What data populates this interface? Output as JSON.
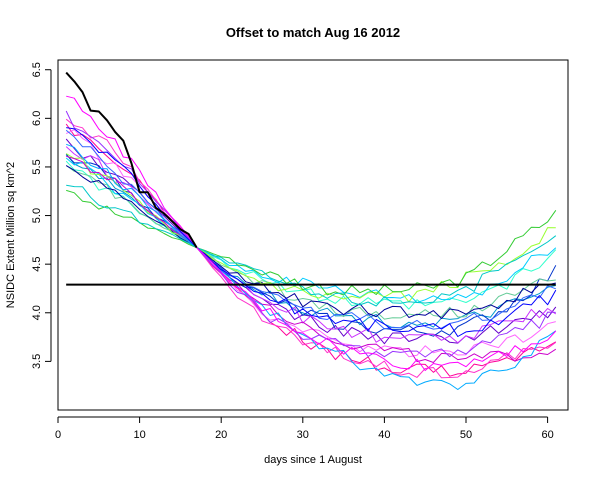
{
  "chart_data": {
    "type": "line",
    "title": "Offset to match Aug 16 2012",
    "xlabel": "days since 1 August",
    "ylabel": "NSIDC Extent Million sq km^2",
    "xlim": [
      0,
      62.5
    ],
    "ylim": [
      3.0,
      6.6
    ],
    "xticks": [
      0,
      10,
      20,
      30,
      40,
      50,
      60
    ],
    "yticks": [
      3.5,
      4.0,
      4.5,
      5.0,
      5.5,
      6.0,
      6.5
    ],
    "grid": false,
    "legend": "none",
    "match_day": 17,
    "match_value": 4.67,
    "hline": {
      "value": 4.29,
      "x_from": 1,
      "x_to": 61,
      "color": "#000000"
    },
    "series": [
      {
        "color": "#000000",
        "width": 2,
        "x": [
          1,
          2,
          3,
          4,
          5,
          6,
          7,
          8,
          9,
          10,
          11,
          12,
          13,
          14,
          15,
          16,
          17
        ],
        "values": [
          6.47,
          6.38,
          6.27,
          6.08,
          6.07,
          5.98,
          5.86,
          5.77,
          5.54,
          5.24,
          5.24,
          5.08,
          5.02,
          4.94,
          4.86,
          4.81,
          4.67
        ]
      },
      {
        "color": "#ff00ff",
        "x": [
          1,
          5,
          9,
          13,
          17,
          21,
          25,
          30,
          35,
          40,
          45,
          50,
          55,
          61
        ],
        "values": [
          6.22,
          5.95,
          5.55,
          5.1,
          4.67,
          4.33,
          4.05,
          3.8,
          3.62,
          3.52,
          3.45,
          3.5,
          3.62,
          3.75
        ]
      },
      {
        "color": "#0000ff",
        "x": [
          1,
          5,
          9,
          13,
          17,
          21,
          25,
          30,
          35,
          40,
          45,
          50,
          55,
          61
        ],
        "values": [
          5.92,
          5.7,
          5.4,
          5.02,
          4.67,
          4.38,
          4.2,
          4.02,
          3.92,
          3.86,
          3.84,
          3.82,
          3.96,
          4.18
        ]
      },
      {
        "color": "#00c8c8",
        "x": [
          1,
          5,
          9,
          13,
          17,
          21,
          25,
          30,
          35,
          40,
          45,
          50,
          55,
          61
        ],
        "values": [
          5.35,
          5.15,
          5.0,
          4.85,
          4.67,
          4.52,
          4.4,
          4.22,
          4.15,
          4.12,
          4.14,
          4.25,
          4.45,
          4.75
        ]
      },
      {
        "color": "#33cc33",
        "x": [
          1,
          5,
          9,
          13,
          17,
          21,
          25,
          30,
          35,
          40,
          45,
          50,
          55,
          61
        ],
        "values": [
          5.32,
          5.1,
          4.95,
          4.82,
          4.67,
          4.55,
          4.42,
          4.3,
          4.22,
          4.22,
          4.25,
          4.35,
          4.65,
          5.02
        ]
      },
      {
        "color": "#9933ff",
        "x": [
          1,
          5,
          9,
          13,
          17,
          21,
          25,
          30,
          35,
          40,
          45,
          50,
          55,
          61
        ],
        "values": [
          6.02,
          5.78,
          5.45,
          5.06,
          4.67,
          4.3,
          4.0,
          3.76,
          3.65,
          3.6,
          3.58,
          3.62,
          3.75,
          3.98
        ]
      },
      {
        "color": "#00aaff",
        "x": [
          1,
          5,
          9,
          13,
          17,
          21,
          25,
          30,
          35,
          40,
          45,
          50,
          55,
          61
        ],
        "values": [
          5.7,
          5.5,
          5.25,
          4.95,
          4.67,
          4.35,
          4.05,
          3.78,
          3.55,
          3.38,
          3.25,
          3.28,
          3.45,
          3.8
        ]
      },
      {
        "color": "#cc00cc",
        "x": [
          1,
          5,
          9,
          13,
          17,
          21,
          25,
          30,
          35,
          40,
          45,
          50,
          55,
          61
        ],
        "values": [
          5.6,
          5.45,
          5.2,
          4.92,
          4.67,
          4.35,
          4.12,
          3.88,
          3.7,
          3.62,
          3.55,
          3.5,
          3.55,
          3.62
        ]
      },
      {
        "color": "#99ff33",
        "x": [
          1,
          5,
          9,
          13,
          17,
          21,
          25,
          30,
          35,
          40,
          45,
          50,
          55,
          61
        ],
        "values": [
          5.65,
          5.42,
          5.18,
          4.9,
          4.67,
          4.45,
          4.3,
          4.18,
          4.12,
          4.15,
          4.2,
          4.35,
          4.55,
          4.88
        ]
      },
      {
        "color": "#000099",
        "x": [
          1,
          5,
          9,
          13,
          17,
          21,
          25,
          30,
          35,
          40,
          45,
          50,
          55,
          61
        ],
        "values": [
          5.55,
          5.35,
          5.12,
          4.88,
          4.67,
          4.42,
          4.28,
          4.12,
          4.05,
          4.0,
          4.0,
          4.02,
          4.12,
          4.32
        ]
      },
      {
        "color": "#ff33cc",
        "x": [
          1,
          5,
          9,
          13,
          17,
          21,
          25,
          30,
          35,
          40,
          45,
          50,
          55,
          61
        ],
        "values": [
          6.05,
          5.8,
          5.48,
          5.08,
          4.67,
          4.25,
          3.95,
          3.7,
          3.55,
          3.45,
          3.38,
          3.4,
          3.52,
          3.72
        ]
      },
      {
        "color": "#3366ff",
        "x": [
          1,
          5,
          9,
          13,
          17,
          21,
          25,
          30,
          35,
          40,
          45,
          50,
          55,
          61
        ],
        "values": [
          5.82,
          5.58,
          5.3,
          4.98,
          4.67,
          4.4,
          4.22,
          4.05,
          3.95,
          3.9,
          3.88,
          3.9,
          4.05,
          4.28
        ]
      },
      {
        "color": "#66cc99",
        "x": [
          1,
          5,
          9,
          13,
          17,
          21,
          25,
          30,
          35,
          40,
          45,
          50,
          55,
          61
        ],
        "values": [
          5.48,
          5.3,
          5.1,
          4.88,
          4.67,
          4.45,
          4.3,
          4.12,
          4.02,
          3.98,
          3.98,
          4.02,
          4.15,
          4.38
        ]
      },
      {
        "color": "#00ccff",
        "x": [
          1,
          5,
          9,
          13,
          17,
          21,
          25,
          30,
          35,
          40,
          45,
          50,
          55,
          61
        ],
        "values": [
          5.58,
          5.38,
          5.15,
          4.9,
          4.67,
          4.5,
          4.4,
          4.3,
          4.22,
          4.18,
          4.15,
          4.18,
          4.35,
          4.72
        ]
      },
      {
        "color": "#cc33ff",
        "x": [
          1,
          5,
          9,
          13,
          17,
          21,
          25,
          30,
          35,
          40,
          45,
          50,
          55,
          61
        ],
        "values": [
          5.72,
          5.52,
          5.28,
          4.96,
          4.67,
          4.38,
          4.15,
          3.95,
          3.82,
          3.75,
          3.72,
          3.75,
          3.88,
          4.05
        ]
      },
      {
        "color": "#0033cc",
        "x": [
          1,
          5,
          9,
          13,
          17,
          21,
          25,
          30,
          35,
          40,
          45,
          50,
          55,
          61
        ],
        "values": [
          5.66,
          5.45,
          5.22,
          4.94,
          4.67,
          4.38,
          4.18,
          4.0,
          3.88,
          3.82,
          3.8,
          3.85,
          4.05,
          4.42
        ]
      },
      {
        "color": "#ff66ff",
        "x": [
          1,
          5,
          9,
          13,
          17,
          21,
          25,
          30,
          35,
          40,
          45,
          50,
          55,
          61
        ],
        "values": [
          5.9,
          5.65,
          5.38,
          5.02,
          4.67,
          4.32,
          4.02,
          3.8,
          3.68,
          3.62,
          3.6,
          3.62,
          3.72,
          3.85
        ]
      },
      {
        "color": "#33ffcc",
        "x": [
          1,
          5,
          9,
          13,
          17,
          21,
          25,
          30,
          35,
          40,
          45,
          50,
          55,
          61
        ],
        "values": [
          5.5,
          5.32,
          5.1,
          4.88,
          4.67,
          4.48,
          4.35,
          4.2,
          4.12,
          4.08,
          4.08,
          4.12,
          4.3,
          4.6
        ]
      },
      {
        "color": "#6600cc",
        "x": [
          1,
          5,
          9,
          13,
          17,
          21,
          25,
          30,
          35,
          40,
          45,
          50,
          55,
          61
        ],
        "values": [
          5.75,
          5.55,
          5.3,
          4.97,
          4.67,
          4.36,
          4.12,
          3.92,
          3.8,
          3.74,
          3.72,
          3.74,
          3.85,
          4.02
        ]
      },
      {
        "color": "#0099cc",
        "x": [
          1,
          5,
          9,
          13,
          17,
          21,
          25,
          30,
          35,
          40,
          45,
          50,
          55,
          61
        ],
        "values": [
          5.62,
          5.42,
          5.18,
          4.92,
          4.67,
          4.4,
          4.22,
          4.05,
          3.96,
          3.92,
          3.9,
          3.92,
          4.05,
          4.25
        ]
      },
      {
        "color": "#ff0099",
        "x": [
          1,
          5,
          9,
          13,
          17,
          21,
          25,
          30,
          35,
          40,
          45,
          50,
          55,
          61
        ],
        "values": [
          5.95,
          5.72,
          5.42,
          5.05,
          4.67,
          4.3,
          4.0,
          3.72,
          3.55,
          3.45,
          3.4,
          3.42,
          3.55,
          3.68
        ]
      }
    ]
  }
}
